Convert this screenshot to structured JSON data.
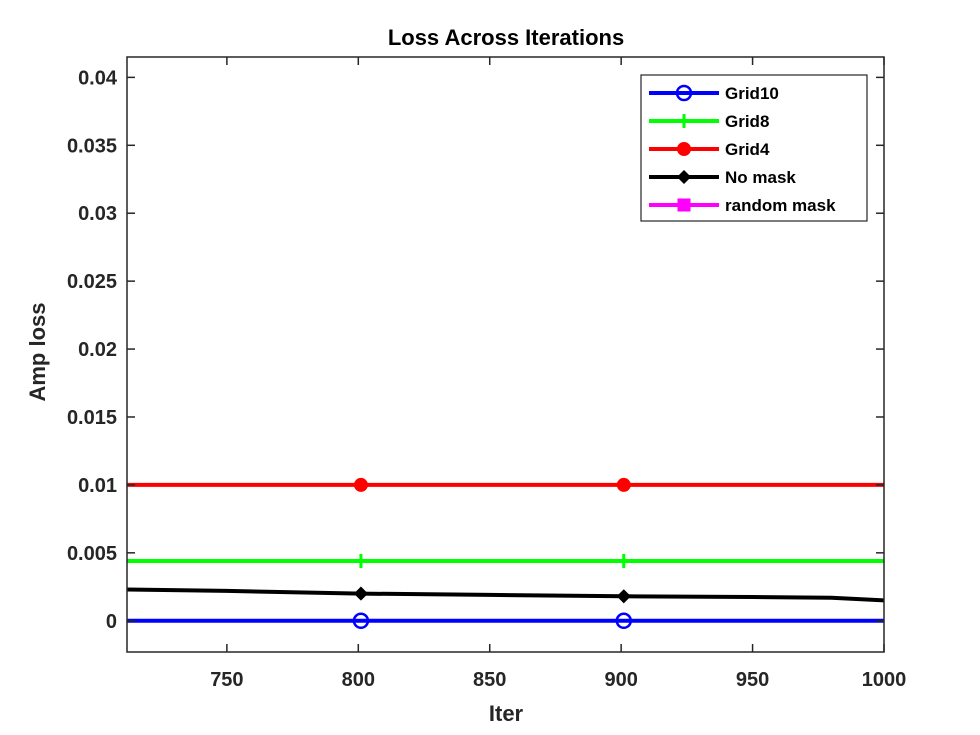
{
  "chart_data": {
    "type": "line",
    "title": "Loss Across Iterations",
    "xlabel": "Iter",
    "ylabel": "Amp loss",
    "xlim": [
      712,
      1000
    ],
    "ylim": [
      -0.0023,
      0.0415
    ],
    "xticks": [
      750,
      800,
      850,
      900,
      950,
      1000
    ],
    "xtick_labels": [
      "750",
      "800",
      "850",
      "900",
      "950",
      "1000"
    ],
    "yticks": [
      0,
      0.005,
      0.01,
      0.015,
      0.02,
      0.025,
      0.03,
      0.035,
      0.04
    ],
    "ytick_labels": [
      "0",
      "0.005",
      "0.01",
      "0.015",
      "0.02",
      "0.025",
      "0.03",
      "0.035",
      "0.04"
    ],
    "grid": false,
    "legend_position": "top-right",
    "series": [
      {
        "name": "Grid10",
        "color": "#0000ff",
        "marker": "circle-open",
        "x": [
          712,
          800,
          900,
          1000
        ],
        "y": [
          0,
          0,
          0,
          0
        ],
        "marker_x": [
          801,
          901
        ]
      },
      {
        "name": "Grid8",
        "color": "#00ff00",
        "marker": "plus",
        "x": [
          712,
          800,
          900,
          1000
        ],
        "y": [
          0.0044,
          0.0044,
          0.0044,
          0.0044
        ],
        "marker_x": [
          801,
          901
        ]
      },
      {
        "name": "Grid4",
        "color": "#ff0000",
        "marker": "circle-filled",
        "x": [
          712,
          800,
          900,
          1000
        ],
        "y": [
          0.01,
          0.01,
          0.01,
          0.01
        ],
        "marker_x": [
          801,
          901
        ]
      },
      {
        "name": "No mask",
        "color": "#000000",
        "marker": "diamond-filled",
        "x": [
          712,
          750,
          801,
          850,
          901,
          950,
          980,
          1000
        ],
        "y": [
          0.0023,
          0.0022,
          0.002,
          0.0019,
          0.0018,
          0.00175,
          0.0017,
          0.0015
        ],
        "marker_x": [
          801,
          901
        ]
      },
      {
        "name": "random mask",
        "color": "#ff00ff",
        "marker": "square-filled",
        "x": [],
        "y": [],
        "marker_x": []
      }
    ]
  }
}
